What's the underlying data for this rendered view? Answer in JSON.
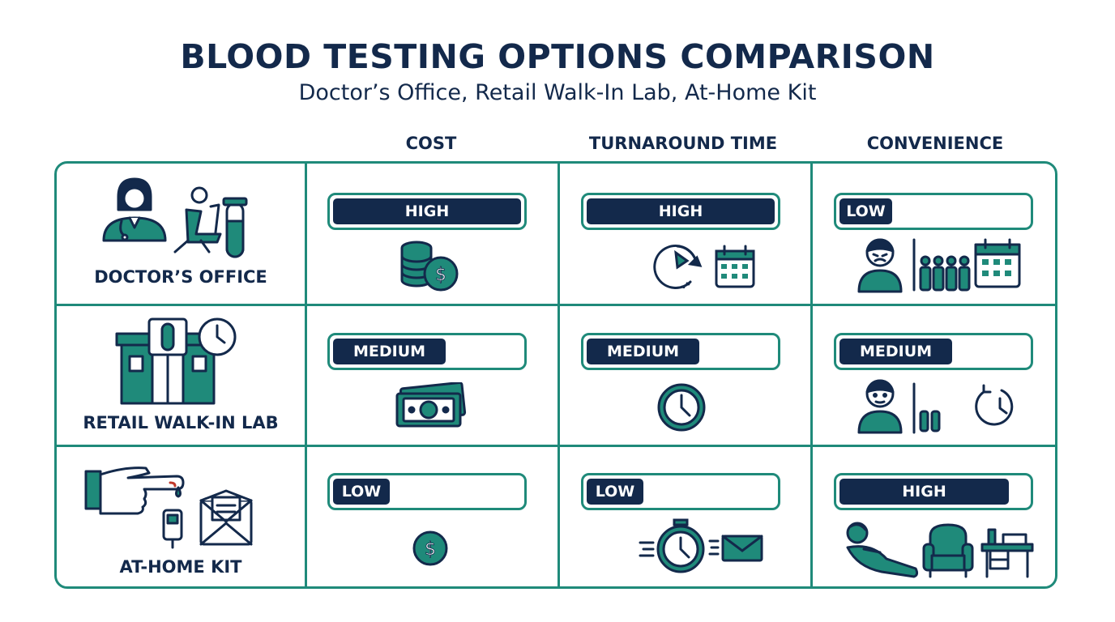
{
  "header": {
    "title": "BLOOD TESTING OPTIONS COMPARISON",
    "subtitle": "Doctor’s Office, Retail Walk-In Lab, At-Home Kit"
  },
  "columns": [
    "COST",
    "TURNAROUND TIME",
    "CONVENIENCE"
  ],
  "rows": [
    {
      "label": "DOCTOR’S OFFICE",
      "cells": [
        {
          "level": "HIGH",
          "fill": 1.0
        },
        {
          "level": "HIGH",
          "fill": 1.0
        },
        {
          "level": "LOW",
          "fill": 0.28
        }
      ]
    },
    {
      "label": "RETAIL WALK-IN LAB",
      "cells": [
        {
          "level": "MEDIUM",
          "fill": 0.6
        },
        {
          "level": "MEDIUM",
          "fill": 0.6
        },
        {
          "level": "MEDIUM",
          "fill": 0.6
        }
      ]
    },
    {
      "label": "AT-HOME KIT",
      "cells": [
        {
          "level": "LOW",
          "fill": 0.3
        },
        {
          "level": "LOW",
          "fill": 0.3
        },
        {
          "level": "HIGH",
          "fill": 0.9
        }
      ]
    }
  ],
  "colors": {
    "teal": "#1f8a7a",
    "navy": "#13294b"
  },
  "icons": {
    "row_icons": [
      "doctor-office-icon",
      "retail-lab-icon",
      "at-home-kit-icon"
    ],
    "cell_icons": [
      [
        "coin-stack-icon",
        "clock-calendar-icon",
        "frustrated-queue-calendar-icon"
      ],
      [
        "cash-bills-icon",
        "clock-icon",
        "person-short-wait-icon"
      ],
      [
        "dollar-coin-icon",
        "stopwatch-mail-icon",
        "relax-chair-desk-icon"
      ]
    ]
  }
}
